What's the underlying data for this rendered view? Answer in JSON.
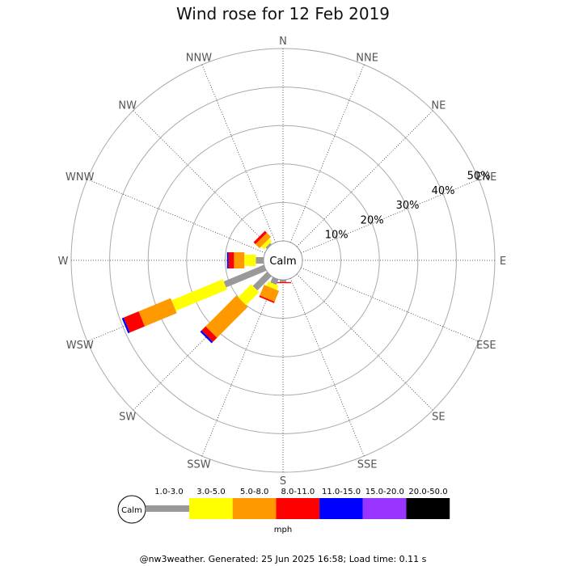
{
  "chart_data": {
    "type": "wind-rose",
    "title": "Wind rose for 12 Feb 2019",
    "center_label": "Calm",
    "unit": "mph",
    "footer": "@nw3weather. Generated: 25 Jun 2025 16:58; Load time: 0.11 s",
    "directions": [
      "N",
      "NNE",
      "NE",
      "ENE",
      "E",
      "ESE",
      "SE",
      "SSE",
      "S",
      "SSW",
      "SW",
      "WSW",
      "W",
      "WNW",
      "NW",
      "NNW"
    ],
    "radial_ticks": [
      "10%",
      "20%",
      "30%",
      "40%",
      "50%"
    ],
    "radial_max": 50,
    "speed_bins": [
      {
        "label": "1.0-3.0",
        "color": "#999999"
      },
      {
        "label": "3.0-5.0",
        "color": "#ffff00"
      },
      {
        "label": "5.0-8.0",
        "color": "#ff9900"
      },
      {
        "label": "8.0-11.0",
        "color": "#ff0000"
      },
      {
        "label": "11.0-15.0",
        "color": "#0000ff"
      },
      {
        "label": "15.0-20.0",
        "color": "#9933ff"
      },
      {
        "label": "20.0-50.0",
        "color": "#000000"
      }
    ],
    "series": [
      {
        "direction": "S",
        "values": [
          0.6,
          0,
          0,
          0.3,
          0,
          0,
          0
        ]
      },
      {
        "direction": "SSW",
        "values": [
          1.5,
          1.2,
          3.0,
          0.4,
          0,
          0,
          0
        ]
      },
      {
        "direction": "SW",
        "values": [
          5.2,
          4.8,
          11.3,
          1.5,
          0.5,
          0,
          0
        ]
      },
      {
        "direction": "WSW",
        "values": [
          11.3,
          14.4,
          9.0,
          4.2,
          0.5,
          0,
          0
        ]
      },
      {
        "direction": "W",
        "values": [
          2.0,
          3.0,
          2.7,
          1.4,
          0.4,
          0,
          0
        ]
      },
      {
        "direction": "NW",
        "values": [
          0.5,
          1.0,
          1.5,
          0.7,
          0,
          0,
          0
        ]
      }
    ]
  }
}
